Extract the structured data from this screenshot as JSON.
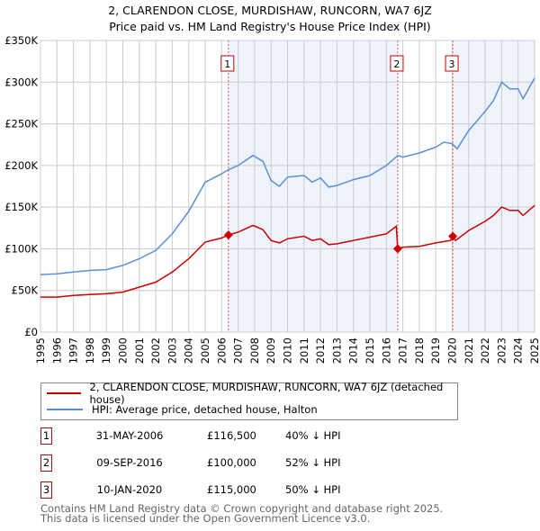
{
  "chart_data": {
    "type": "line",
    "title": "2, CLARENDON CLOSE, MURDISHAW, RUNCORN, WA7 6JZ",
    "subtitle": "Price paid vs. HM Land Registry's House Price Index (HPI)",
    "xlim": [
      1995,
      2025
    ],
    "ylim": [
      0,
      350000
    ],
    "grid": true,
    "y_ticks": [
      {
        "value": 0,
        "label": "£0"
      },
      {
        "value": 50000,
        "label": "£50K"
      },
      {
        "value": 100000,
        "label": "£100K"
      },
      {
        "value": 150000,
        "label": "£150K"
      },
      {
        "value": 200000,
        "label": "£200K"
      },
      {
        "value": 250000,
        "label": "£250K"
      },
      {
        "value": 300000,
        "label": "£300K"
      },
      {
        "value": 350000,
        "label": "£350K"
      }
    ],
    "x_ticks": [
      "1995",
      "1996",
      "1997",
      "1998",
      "1999",
      "2000",
      "2001",
      "2002",
      "2003",
      "2004",
      "2005",
      "2006",
      "2007",
      "2008",
      "2009",
      "2010",
      "2011",
      "2012",
      "2013",
      "2014",
      "2015",
      "2016",
      "2017",
      "2018",
      "2019",
      "2020",
      "2021",
      "2022",
      "2023",
      "2024",
      "2025"
    ],
    "series": [
      {
        "name": "2, CLARENDON CLOSE, MURDISHAW, RUNCORN, WA7 6JZ (detached house)",
        "color": "#cc0000",
        "x": [
          1995,
          1996,
          1997,
          1998,
          1999,
          2000,
          2001,
          2002,
          2003,
          2004,
          2005,
          2006,
          2006.41,
          2007,
          2007.9,
          2008.5,
          2009,
          2009.5,
          2010,
          2011,
          2011.5,
          2012,
          2012.5,
          2013,
          2014,
          2015,
          2016,
          2016.6,
          2016.69,
          2017,
          2018,
          2019,
          2019.9,
          2020.03,
          2020.2,
          2021,
          2022,
          2022.5,
          2023,
          2023.5,
          2024,
          2024.3,
          2025
        ],
        "y": [
          42000,
          42000,
          44000,
          45000,
          46000,
          48000,
          54000,
          60000,
          72000,
          88000,
          108000,
          113000,
          116500,
          120000,
          128000,
          123000,
          110000,
          107000,
          112000,
          115000,
          110000,
          112000,
          105000,
          106000,
          110000,
          114000,
          118000,
          127000,
          100000,
          102000,
          103000,
          107000,
          110000,
          115000,
          110000,
          122000,
          133000,
          140000,
          150000,
          146000,
          146000,
          140000,
          152000
        ]
      },
      {
        "name": "HPI: Average price, detached house, Halton",
        "color": "#5b8fd4",
        "x": [
          1995,
          1996,
          1997,
          1998,
          1999,
          2000,
          2001,
          2002,
          2003,
          2004,
          2005,
          2006,
          2006.41,
          2007,
          2007.9,
          2008.5,
          2009,
          2009.5,
          2010,
          2011,
          2011.5,
          2012,
          2012.5,
          2013,
          2014,
          2015,
          2016,
          2016.7,
          2017,
          2018,
          2019,
          2019.5,
          2020,
          2020.3,
          2021,
          2022,
          2022.5,
          2023,
          2023.5,
          2024,
          2024.3,
          2025
        ],
        "y": [
          69000,
          70000,
          72000,
          74000,
          75000,
          80000,
          88000,
          98000,
          118000,
          145000,
          180000,
          190000,
          195000,
          200000,
          212000,
          205000,
          182000,
          175000,
          186000,
          188000,
          180000,
          185000,
          174000,
          176000,
          183000,
          188000,
          200000,
          212000,
          210000,
          215000,
          222000,
          228000,
          226000,
          220000,
          242000,
          265000,
          278000,
          300000,
          292000,
          292000,
          280000,
          305000
        ]
      }
    ],
    "sales": [
      {
        "num": "1",
        "x": 2006.41,
        "price": 116500,
        "date": "31-MAY-2006",
        "price_label": "£116,500",
        "hpi_label": "40% ↓ HPI"
      },
      {
        "num": "2",
        "x": 2016.69,
        "price": 100000,
        "date": "09-SEP-2016",
        "price_label": "£100,000",
        "hpi_label": "52% ↓ HPI"
      },
      {
        "num": "3",
        "x": 2020.03,
        "price": 115000,
        "date": "10-JAN-2020",
        "price_label": "£115,000",
        "hpi_label": "50% ↓ HPI"
      }
    ],
    "shaded_ranges": [
      [
        2006.41,
        2016.69
      ],
      [
        2020.03,
        2025
      ]
    ],
    "legend_placement": "below"
  },
  "footer": {
    "line1": "Contains HM Land Registry data © Crown copyright and database right 2025.",
    "line2": "This data is licensed under the Open Government Licence v3.0."
  }
}
